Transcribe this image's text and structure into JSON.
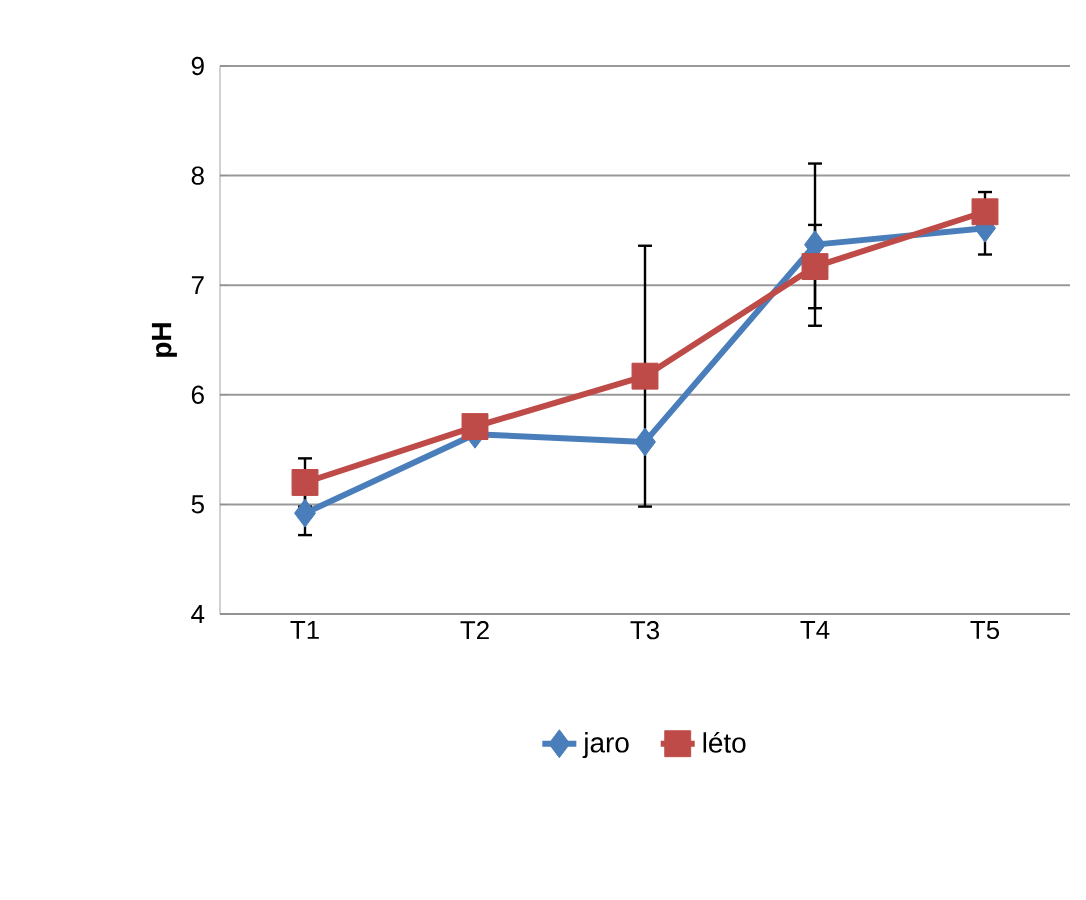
{
  "chart_data": {
    "type": "line",
    "ylabel": "pH",
    "categories": [
      "T1",
      "T2",
      "T3",
      "T4",
      "T5"
    ],
    "series": [
      {
        "name": "jaro",
        "color": "#4a7ebb",
        "marker": "diamond",
        "values": [
          4.92,
          5.64,
          5.57,
          7.37,
          7.52
        ],
        "errors": [
          0.2,
          null,
          null,
          0.74,
          0.24
        ]
      },
      {
        "name": "léto",
        "color": "#be4b48",
        "marker": "square",
        "values": [
          5.2,
          5.71,
          6.17,
          7.17,
          7.67
        ],
        "errors": [
          0.22,
          null,
          1.19,
          0.38,
          0.18
        ]
      }
    ],
    "ylim": [
      4,
      9
    ],
    "yticks": [
      4,
      5,
      6,
      7,
      8,
      9
    ],
    "grid": "y",
    "legend": "bottom"
  }
}
